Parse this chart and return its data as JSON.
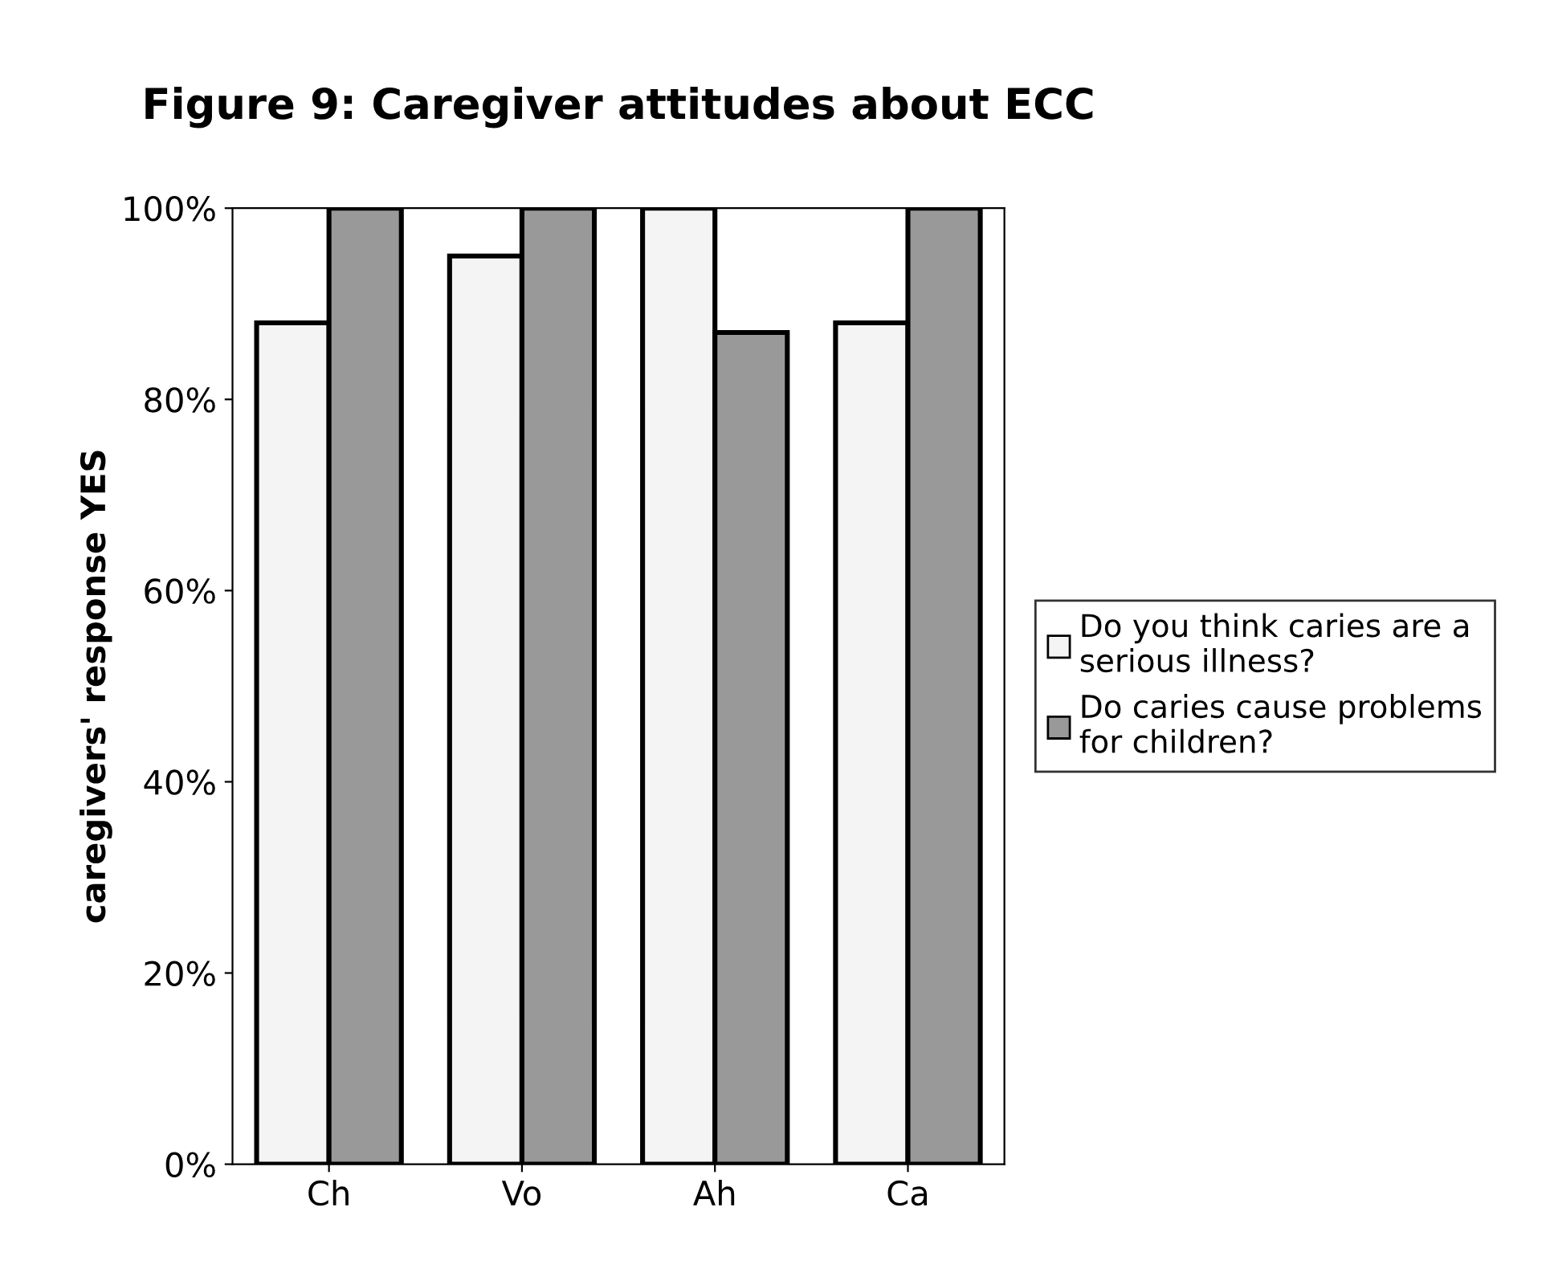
{
  "chart_data": {
    "type": "bar",
    "title": "Figure 9: Caregiver attitudes about ECC",
    "ylabel": "caregivers' response YES",
    "categories": [
      "Ch",
      "Vo",
      "Ah",
      "Ca"
    ],
    "series": [
      {
        "name": "Do you think caries are a serious illness?",
        "color": "#f4f4f4",
        "values": [
          88,
          95,
          100,
          88
        ]
      },
      {
        "name": "Do caries cause problems for children?",
        "color": "#999999",
        "values": [
          100,
          100,
          87,
          100
        ]
      }
    ],
    "ylim": [
      0,
      100
    ],
    "yticks": [
      {
        "value": 0,
        "label": "0%"
      },
      {
        "value": 20,
        "label": "20%"
      },
      {
        "value": 40,
        "label": "40%"
      },
      {
        "value": 60,
        "label": "60%"
      },
      {
        "value": 80,
        "label": "80%"
      },
      {
        "value": 100,
        "label": "100%"
      }
    ],
    "grid": false,
    "legend": "right"
  }
}
